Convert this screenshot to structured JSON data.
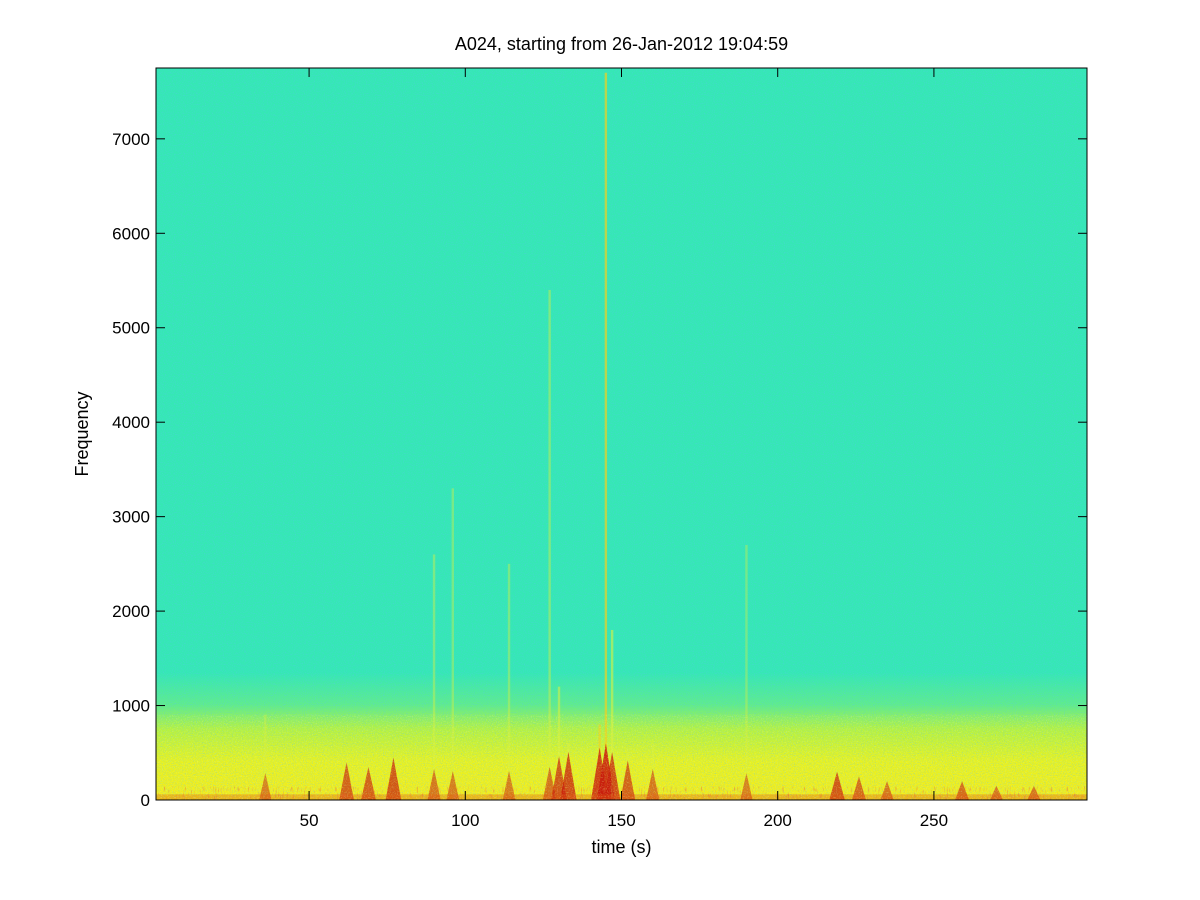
{
  "chart_data": {
    "type": "heatmap",
    "title": "A024, starting from 26-Jan-2012 19:04:59",
    "xlabel": "time (s)",
    "ylabel": "Frequency",
    "xlim": [
      1,
      299
    ],
    "ylim": [
      0,
      7750
    ],
    "x_ticks": [
      50,
      100,
      150,
      200,
      250
    ],
    "y_ticks": [
      0,
      1000,
      2000,
      3000,
      4000,
      5000,
      6000,
      7000
    ],
    "x_tick_labels": [
      "50",
      "100",
      "150",
      "200",
      "250"
    ],
    "y_tick_labels": [
      "0",
      "1000",
      "2000",
      "3000",
      "4000",
      "5000",
      "6000",
      "7000"
    ],
    "colormap": "jet",
    "colors": {
      "background_level": "#35e8b4",
      "low_band_level": "#f3f21a",
      "peak_level": "#c8180c",
      "noise_dark": "#1f8fd8"
    },
    "bands": [
      {
        "name": "background noise",
        "freq_range": [
          1000,
          7750
        ],
        "level": "cyan-green"
      },
      {
        "name": "low-frequency energy",
        "freq_range": [
          0,
          750
        ],
        "level": "yellow"
      },
      {
        "name": "strong low-frequency energy",
        "freq_range": [
          0,
          120
        ],
        "level": "red"
      }
    ],
    "transients": [
      {
        "time": 36,
        "max_freq": 900,
        "strength": 0.3
      },
      {
        "time": 62,
        "max_freq": 400,
        "strength": 0.6
      },
      {
        "time": 69,
        "max_freq": 350,
        "strength": 0.6
      },
      {
        "time": 77,
        "max_freq": 450,
        "strength": 0.7
      },
      {
        "time": 90,
        "max_freq": 2600,
        "strength": 0.4
      },
      {
        "time": 96,
        "max_freq": 3300,
        "strength": 0.35
      },
      {
        "time": 114,
        "max_freq": 2500,
        "strength": 0.35
      },
      {
        "time": 127,
        "max_freq": 5400,
        "strength": 0.45
      },
      {
        "time": 130,
        "max_freq": 1200,
        "strength": 0.7
      },
      {
        "time": 133,
        "max_freq": 600,
        "strength": 0.8
      },
      {
        "time": 143,
        "max_freq": 800,
        "strength": 0.9
      },
      {
        "time": 145,
        "max_freq": 7700,
        "strength": 1.0
      },
      {
        "time": 147,
        "max_freq": 1800,
        "strength": 0.8
      },
      {
        "time": 152,
        "max_freq": 500,
        "strength": 0.6
      },
      {
        "time": 160,
        "max_freq": 600,
        "strength": 0.4
      },
      {
        "time": 190,
        "max_freq": 2700,
        "strength": 0.3
      },
      {
        "time": 219,
        "max_freq": 300,
        "strength": 0.7
      },
      {
        "time": 226,
        "max_freq": 250,
        "strength": 0.5
      },
      {
        "time": 235,
        "max_freq": 200,
        "strength": 0.4
      },
      {
        "time": 259,
        "max_freq": 200,
        "strength": 0.5
      },
      {
        "time": 270,
        "max_freq": 150,
        "strength": 0.4
      },
      {
        "time": 282,
        "max_freq": 150,
        "strength": 0.4
      }
    ],
    "grid": false,
    "legend": "none"
  }
}
